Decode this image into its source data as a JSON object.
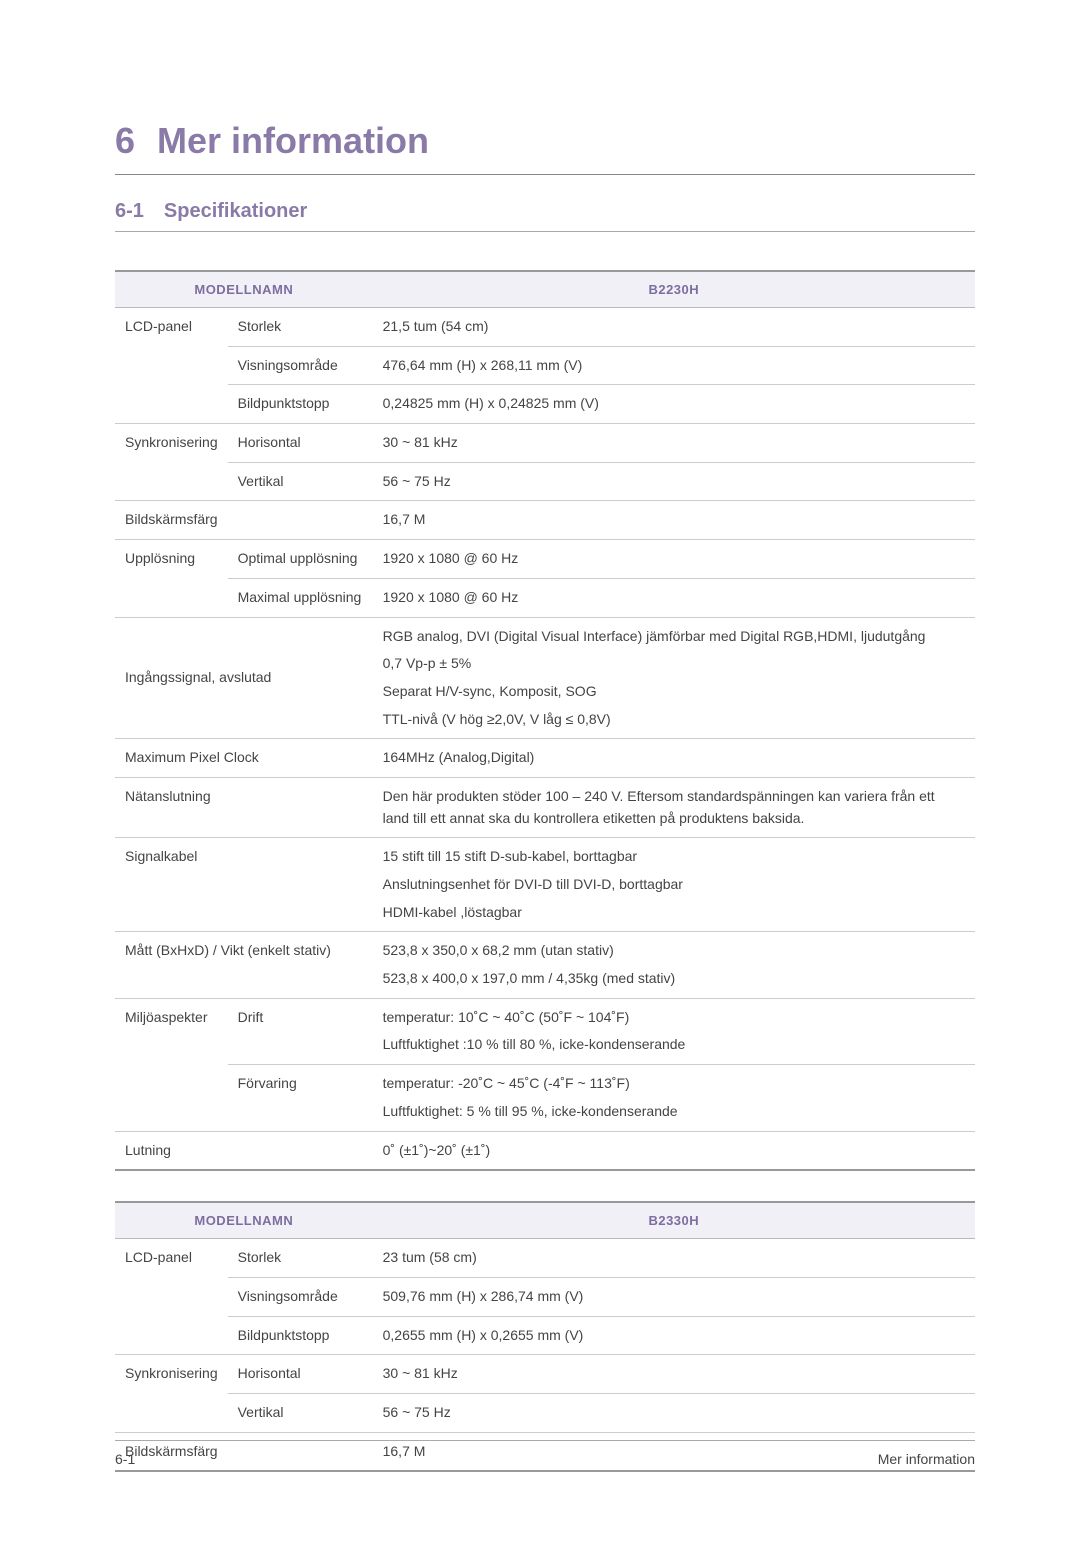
{
  "chapter": {
    "number": "6",
    "title": "Mer information"
  },
  "section": {
    "number": "6-1",
    "title": "Specifikationer"
  },
  "colors": {
    "heading": "#8a7aa8",
    "header_bg": "#f2f0f7",
    "header_text": "#7d6ea0",
    "border": "#cccccc",
    "border_strong": "#999999",
    "body_text": "#444444",
    "page_bg": "#ffffff"
  },
  "typography": {
    "chapter_fontsize": 36,
    "section_fontsize": 20,
    "body_fontsize": 14,
    "header_fontsize": 13
  },
  "table_header_label": "MODELLNAMN",
  "table1": {
    "model": "B2230H",
    "rows": {
      "lcd_label": "LCD-panel",
      "lcd_size_label": "Storlek",
      "lcd_size_val": "21,5 tum (54 cm)",
      "lcd_area_label": "Visningsområde",
      "lcd_area_val": "476,64 mm (H) x 268,11 mm (V)",
      "lcd_pitch_label": "Bildpunktstopp",
      "lcd_pitch_val": "0,24825 mm (H) x 0,24825 mm (V)",
      "sync_label": "Synkronisering",
      "sync_h_label": "Horisontal",
      "sync_h_val": "30 ~ 81 kHz",
      "sync_v_label": "Vertikal",
      "sync_v_val": "56 ~ 75 Hz",
      "color_label": "Bildskärmsfärg",
      "color_val": "16,7 M",
      "res_label": "Upplösning",
      "res_opt_label": "Optimal upplösning",
      "res_opt_val": "1920 x 1080 @ 60 Hz",
      "res_max_label": "Maximal upplösning",
      "res_max_val": "1920 x 1080 @ 60 Hz",
      "input_label": "Ingångssignal, avslutad",
      "input_l1": "RGB analog, DVI (Digital Visual Interface) jämförbar med Digital RGB,HDMI, ljudutgång",
      "input_l2": "0,7 Vp-p ± 5%",
      "input_l3": "Separat H/V-sync, Komposit, SOG",
      "input_l4": "TTL-nivå (V hög ≥2,0V, V låg ≤ 0,8V)",
      "clock_label": "Maximum Pixel Clock",
      "clock_val": "164MHz (Analog,Digital)",
      "power_label": "Nätanslutning",
      "power_val": "Den här produkten stöder 100 – 240 V. Eftersom standardspänningen kan variera från ett land till ett annat ska du kontrollera etiketten på produktens baksida.",
      "cable_label": "Signalkabel",
      "cable_l1": "15 stift till 15 stift D-sub-kabel, borttagbar",
      "cable_l2": "Anslutningsenhet för DVI-D till DVI-D, borttagbar",
      "cable_l3": "HDMI-kabel ,löstagbar",
      "dim_label": "Mått (BxHxD) / Vikt (enkelt stativ)",
      "dim_l1": "523,8 x 350,0 x 68,2 mm (utan stativ)",
      "dim_l2": "523,8 x 400,0 x 197,0 mm / 4,35kg (med stativ)",
      "env_label": "Miljöaspekter",
      "env_op_label": "Drift",
      "env_op_l1": "temperatur: 10˚C ~ 40˚C (50˚F ~ 104˚F)",
      "env_op_l2": "Luftfuktighet :10 % till 80 %, icke-kondenserande",
      "env_st_label": "Förvaring",
      "env_st_l1": "temperatur: -20˚C ~ 45˚C (-4˚F ~ 113˚F)",
      "env_st_l2": "Luftfuktighet: 5 % till 95 %, icke-kondenserande",
      "tilt_label": "Lutning",
      "tilt_val": "0˚ (±1˚)~20˚ (±1˚)"
    }
  },
  "table2": {
    "model": "B2330H",
    "rows": {
      "lcd_label": "LCD-panel",
      "lcd_size_label": "Storlek",
      "lcd_size_val": "23 tum (58 cm)",
      "lcd_area_label": "Visningsområde",
      "lcd_area_val": "509,76 mm (H) x 286,74 mm (V)",
      "lcd_pitch_label": "Bildpunktstopp",
      "lcd_pitch_val": "0,2655 mm (H) x 0,2655 mm (V)",
      "sync_label": "Synkronisering",
      "sync_h_label": "Horisontal",
      "sync_h_val": "30 ~ 81 kHz",
      "sync_v_label": "Vertikal",
      "sync_v_val": "56 ~ 75 Hz",
      "color_label": "Bildskärmsfärg",
      "color_val": "16,7 M"
    }
  },
  "footer": {
    "left": "6-1",
    "right": "Mer information"
  }
}
